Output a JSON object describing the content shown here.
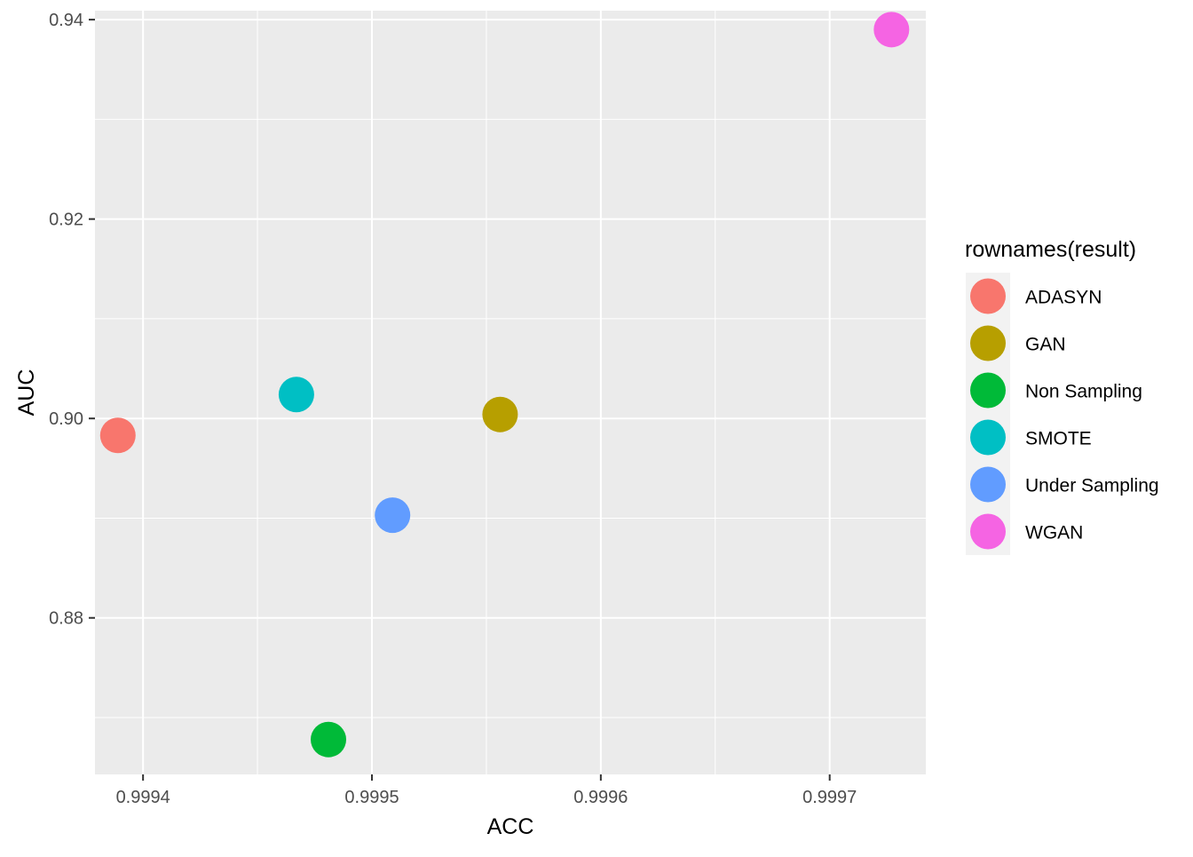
{
  "chart_data": {
    "type": "scatter",
    "xlabel": "ACC",
    "ylabel": "AUC",
    "xlim": [
      0.999379,
      0.999742
    ],
    "ylim": [
      0.8643,
      0.9409
    ],
    "x_ticks": [
      0.9994,
      0.9995,
      0.9996,
      0.9997
    ],
    "x_tick_labels": [
      "0.9994",
      "0.9995",
      "0.9996",
      "0.9997"
    ],
    "y_ticks": [
      0.88,
      0.9,
      0.92,
      0.94
    ],
    "y_tick_labels": [
      "0.88",
      "0.90",
      "0.92",
      "0.94"
    ],
    "grid": true,
    "legend": {
      "title": "rownames(result)",
      "placement": "right"
    },
    "series": [
      {
        "name": "ADASYN",
        "color": "#F8766D",
        "x": 0.999389,
        "y": 0.8983
      },
      {
        "name": "GAN",
        "color": "#B79F00",
        "x": 0.999556,
        "y": 0.9004
      },
      {
        "name": "Non Sampling",
        "color": "#00BA38",
        "x": 0.999481,
        "y": 0.8678
      },
      {
        "name": "SMOTE",
        "color": "#00BFC4",
        "x": 0.999467,
        "y": 0.9024
      },
      {
        "name": "Under Sampling",
        "color": "#619CFF",
        "x": 0.999509,
        "y": 0.8903
      },
      {
        "name": "WGAN",
        "color": "#F564E3",
        "x": 0.999727,
        "y": 0.939
      }
    ]
  }
}
